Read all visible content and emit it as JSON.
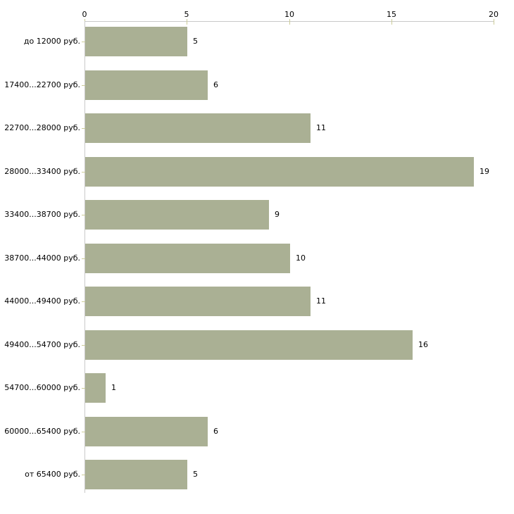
{
  "chart_data": {
    "type": "bar",
    "orientation": "horizontal",
    "title": "",
    "xlabel": "",
    "ylabel": "",
    "categories": [
      "до 12000 руб.",
      "17400...22700 руб.",
      "22700...28000 руб.",
      "28000...33400 руб.",
      "33400...38700 руб.",
      "38700...44000 руб.",
      "44000...49400 руб.",
      "49400...54700 руб.",
      "54700...60000 руб.",
      "60000...65400 руб.",
      "от 65400 руб."
    ],
    "values": [
      5,
      6,
      11,
      19,
      9,
      10,
      11,
      16,
      1,
      6,
      5
    ],
    "x_ticks": [
      0,
      5,
      10,
      15,
      20
    ],
    "xlim": [
      0,
      20
    ],
    "grid": false,
    "value_labels": true,
    "legend": "none",
    "bar_color": "#aab094",
    "axis_color": "#c9c9c9",
    "tick_color": "#cccc99",
    "text_color": "#000000",
    "background_color": "#ffffff"
  }
}
